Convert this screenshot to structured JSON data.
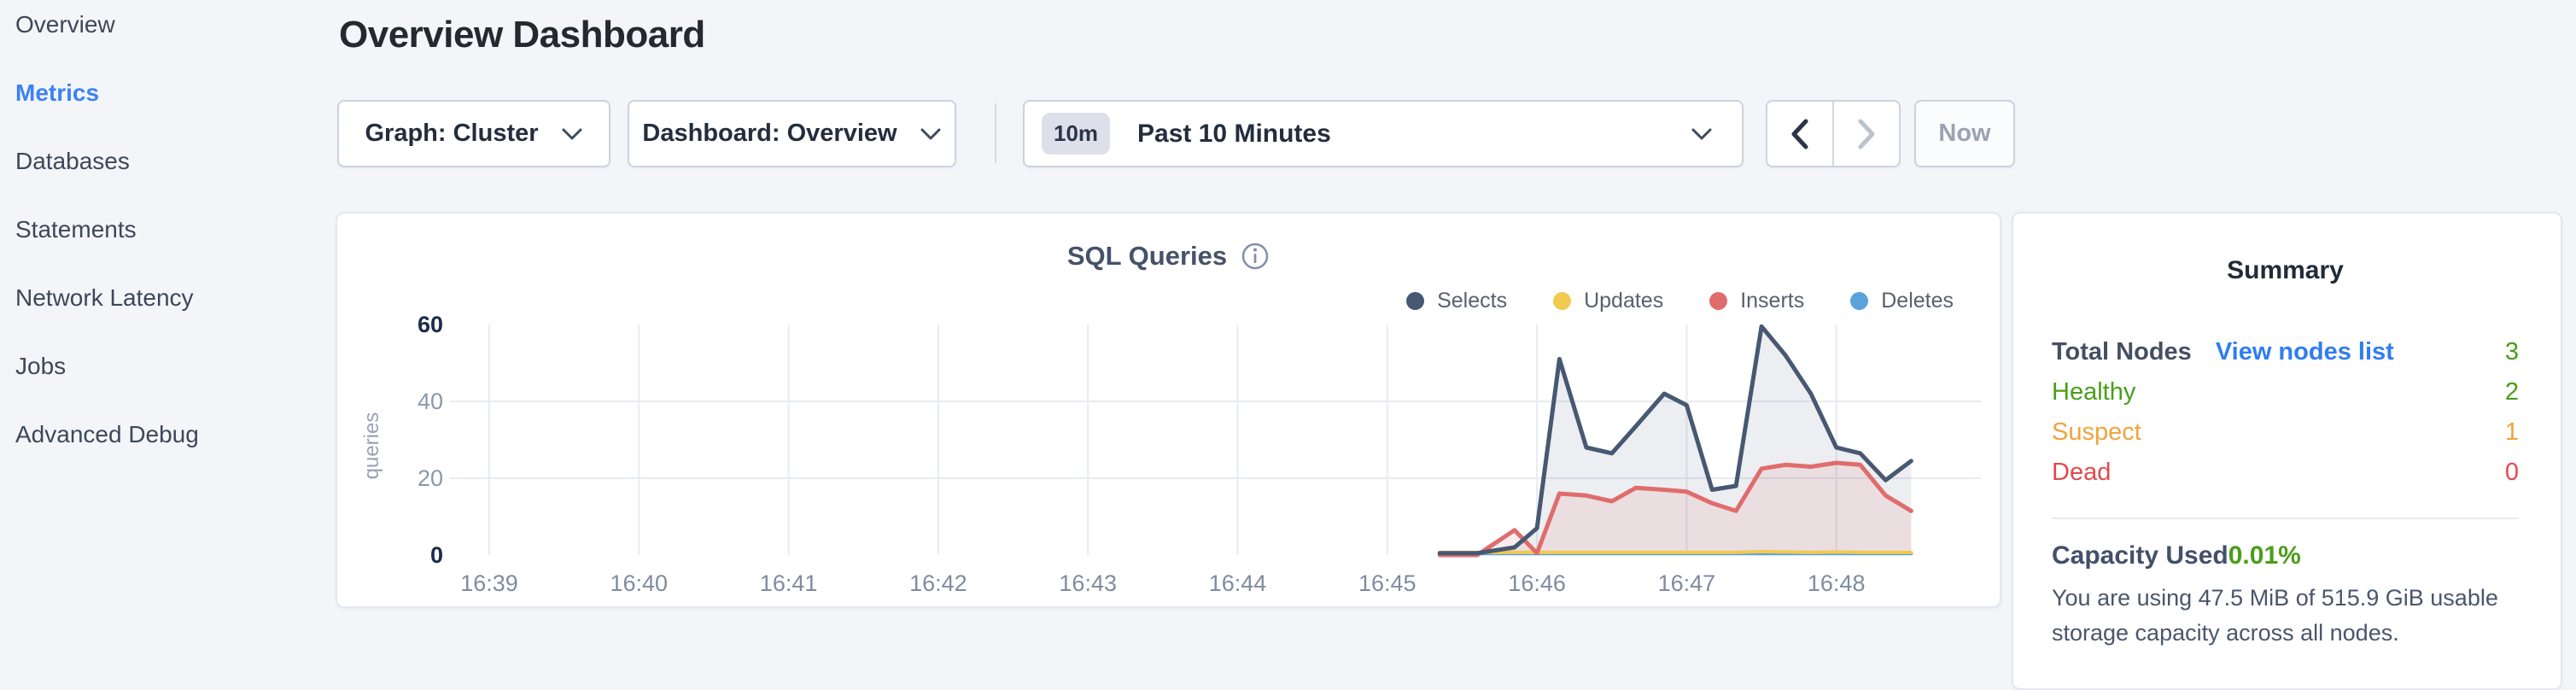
{
  "sidebar": {
    "items": [
      {
        "label": "Overview",
        "active": false
      },
      {
        "label": "Metrics",
        "active": true
      },
      {
        "label": "Databases",
        "active": false
      },
      {
        "label": "Statements",
        "active": false
      },
      {
        "label": "Network Latency",
        "active": false
      },
      {
        "label": "Jobs",
        "active": false
      },
      {
        "label": "Advanced Debug",
        "active": false
      }
    ],
    "active_color": "#3b82f6"
  },
  "header": {
    "title": "Overview Dashboard"
  },
  "toolbar": {
    "graph_dropdown": {
      "label": "Graph: Cluster"
    },
    "dashboard_dropdown": {
      "label": "Dashboard: Overview"
    },
    "time_selector": {
      "badge": "10m",
      "label": "Past 10 Minutes"
    },
    "prev_enabled": true,
    "next_enabled": false,
    "now_button": {
      "label": "Now"
    }
  },
  "icons": {
    "dropdown": "chevron-down-icon",
    "prev": "chevron-left-icon",
    "next": "chevron-right-icon",
    "chart_info": "info-icon"
  },
  "chart_data": {
    "type": "area",
    "title": "SQL Queries",
    "xlabel": "",
    "ylabel": "queries",
    "y_ticks": [
      0,
      20,
      40,
      60
    ],
    "ylim": [
      0,
      62
    ],
    "grid": true,
    "legend_position": "top-right",
    "x_tick_labels": [
      "16:39",
      "16:40",
      "16:41",
      "16:42",
      "16:43",
      "16:44",
      "16:45",
      "16:46",
      "16:47",
      "16:48"
    ],
    "t_minutes_after_1639": [
      6.35,
      6.6,
      6.85,
      7.0,
      7.15,
      7.33,
      7.5,
      7.66,
      7.85,
      8.0,
      8.17,
      8.33,
      8.5,
      8.66,
      8.83,
      9.0,
      9.16,
      9.33,
      9.5
    ],
    "series": [
      {
        "name": "Selects",
        "color": "#475872",
        "fill": "rgba(71,88,114,0.10)",
        "values": [
          0.5,
          0.5,
          2,
          7,
          51,
          28,
          26.5,
          33.5,
          42,
          39,
          17,
          18,
          59.5,
          52,
          42,
          28,
          26.5,
          19.5,
          24.5
        ]
      },
      {
        "name": "Updates",
        "color": "#f2ca50",
        "fill": "none",
        "values": [
          0.7,
          0.7,
          0.7,
          0.7,
          0.7,
          0.7,
          0.7,
          0.7,
          0.7,
          0.7,
          0.7,
          0.7,
          0.9,
          0.8,
          0.7,
          0.8,
          0.7,
          0.7,
          0.7
        ]
      },
      {
        "name": "Inserts",
        "color": "#e06c6c",
        "fill": "rgba(224,108,108,0.12)",
        "values": [
          0,
          0,
          6.5,
          0.5,
          16,
          15.5,
          14,
          17.5,
          17,
          16.5,
          13.5,
          11.5,
          22.5,
          23.5,
          23,
          24,
          23.5,
          15.5,
          11.5
        ]
      },
      {
        "name": "Deletes",
        "color": "#5aa2db",
        "fill": "none",
        "values": [
          0.4,
          0.4,
          0.4,
          0.4,
          0.4,
          0.4,
          0.4,
          0.4,
          0.4,
          0.4,
          0.4,
          0.4,
          0.4,
          0.4,
          0.4,
          0.4,
          0.4,
          0.4,
          0.4
        ]
      }
    ]
  },
  "summary": {
    "title": "Summary",
    "rows": [
      {
        "label": "Total Nodes",
        "link": "View nodes list",
        "value": "3",
        "color": "#4a9e19"
      },
      {
        "label": "Healthy",
        "value": "2",
        "color": "#4a9e19"
      },
      {
        "label": "Suspect",
        "value": "1",
        "color": "#f0a33c"
      },
      {
        "label": "Dead",
        "value": "0",
        "color": "#e5484d"
      }
    ],
    "capacity": {
      "label": "Capacity Used",
      "value": "0.01%",
      "color": "#4a9e19",
      "caption": "You are using 47.5 MiB of 515.9 GiB usable storage capacity across all nodes."
    }
  },
  "colors": {
    "page_background": "#f4f5f9",
    "link_blue": "#2f7df2",
    "green": "#4a9e19",
    "orange": "#f0a33c",
    "red": "#e5484d"
  }
}
